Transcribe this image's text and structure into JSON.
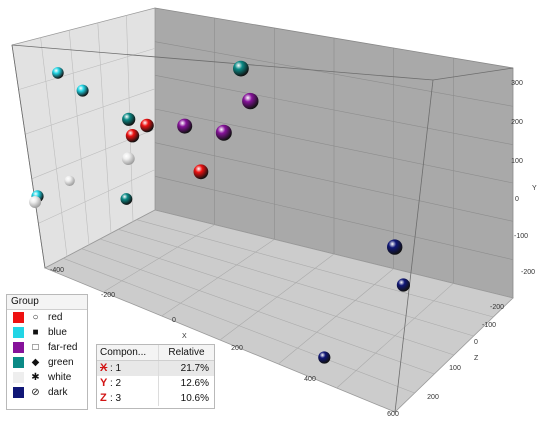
{
  "chart_data": {
    "type": "scatter3d",
    "axes": {
      "x": {
        "label": "X",
        "ticks": [
          -400,
          -200,
          0,
          200,
          400,
          600
        ]
      },
      "y": {
        "label": "Y",
        "ticks": [
          -200,
          -100,
          0,
          100,
          200,
          300
        ]
      },
      "z": {
        "label": "Z",
        "ticks": [
          200,
          100,
          0,
          -100,
          -200
        ]
      }
    },
    "groups": [
      {
        "name": "red",
        "color": "#ee1111",
        "marker": "○"
      },
      {
        "name": "blue",
        "color": "#22d5e5",
        "marker": "■"
      },
      {
        "name": "far-red",
        "color": "#86129a",
        "marker": "□"
      },
      {
        "name": "green",
        "color": "#0b8a86",
        "marker": "◆"
      },
      {
        "name": "white",
        "color": "#eeeeee",
        "marker": "✱"
      },
      {
        "name": "dark",
        "color": "#101777",
        "marker": "⊘"
      }
    ],
    "points": [
      {
        "group": "blue",
        "x": -360,
        "y": 280,
        "z": 140
      },
      {
        "group": "blue",
        "x": -300,
        "y": 250,
        "z": 120
      },
      {
        "group": "blue",
        "x": -390,
        "y": 50,
        "z": 110
      },
      {
        "group": "green",
        "x": 20,
        "y": 300,
        "z": -60
      },
      {
        "group": "green",
        "x": -200,
        "y": 200,
        "z": 60
      },
      {
        "group": "green",
        "x": -150,
        "y": 60,
        "z": 130
      },
      {
        "group": "red",
        "x": -160,
        "y": 190,
        "z": 40
      },
      {
        "group": "red",
        "x": -190,
        "y": 170,
        "z": 50
      },
      {
        "group": "red",
        "x": -30,
        "y": 110,
        "z": -10
      },
      {
        "group": "far-red",
        "x": -90,
        "y": 190,
        "z": -20
      },
      {
        "group": "far-red",
        "x": 40,
        "y": 240,
        "z": -90
      },
      {
        "group": "far-red",
        "x": -10,
        "y": 180,
        "z": -70
      },
      {
        "group": "white",
        "x": -180,
        "y": 130,
        "z": 80
      },
      {
        "group": "white",
        "x": -270,
        "y": 90,
        "z": 200
      },
      {
        "group": "white",
        "x": -390,
        "y": 40,
        "z": 120
      },
      {
        "group": "dark",
        "x": 480,
        "y": 0,
        "z": -40
      },
      {
        "group": "dark",
        "x": 560,
        "y": -60,
        "z": 60
      },
      {
        "group": "dark",
        "x": 400,
        "y": -200,
        "z": 110
      }
    ]
  },
  "legend": {
    "title": "Group",
    "items": [
      {
        "label": "red",
        "color": "#ee1111",
        "marker": "○"
      },
      {
        "label": "blue",
        "color": "#22d5e5",
        "marker": "■"
      },
      {
        "label": "far-red",
        "color": "#86129a",
        "marker": "□"
      },
      {
        "label": "green",
        "color": "#0b8a86",
        "marker": "◆"
      },
      {
        "label": "white",
        "color": "#eeeeee",
        "marker": "✱"
      },
      {
        "label": "dark",
        "color": "#101777",
        "marker": "⊘"
      }
    ]
  },
  "variance_table": {
    "headers": [
      "Compon...",
      "Relative"
    ],
    "rows": [
      {
        "axis": "X",
        "component": ": 1",
        "relative": "21.7%"
      },
      {
        "axis": "Y",
        "component": ": 2",
        "relative": "12.6%"
      },
      {
        "axis": "Z",
        "component": ": 3",
        "relative": "10.6%"
      }
    ]
  }
}
